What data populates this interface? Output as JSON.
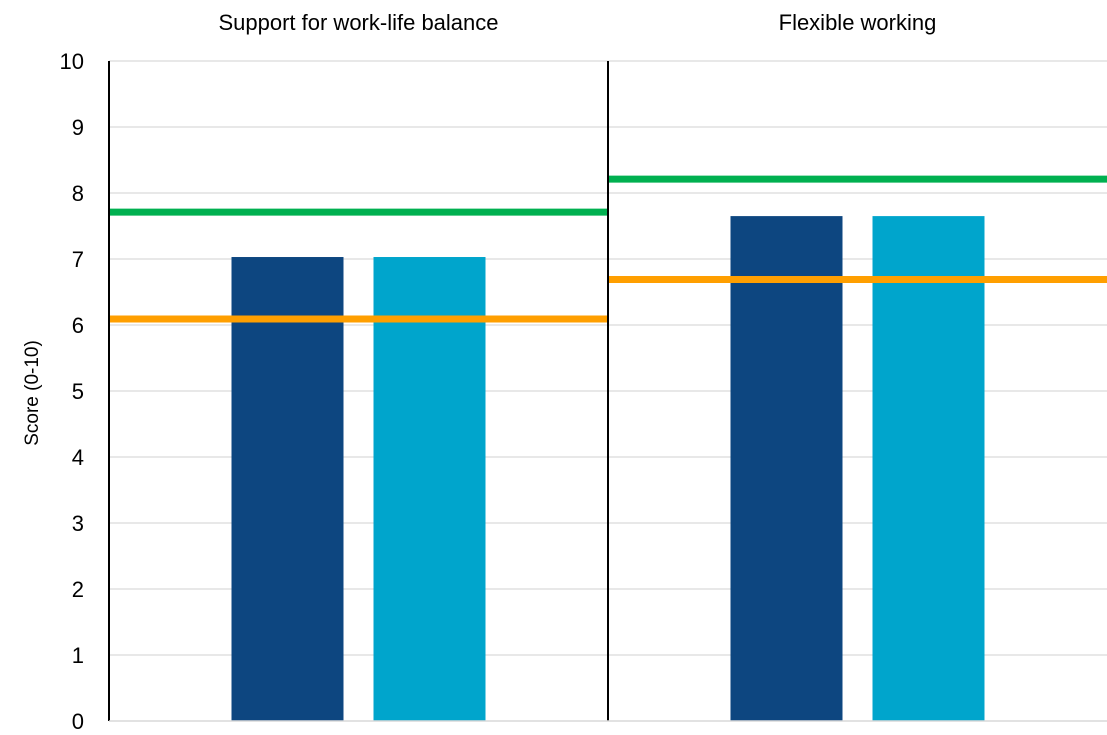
{
  "chart_data": {
    "type": "bar",
    "ylabel": "Score (0-10)",
    "ylim": [
      0,
      10
    ],
    "yticks": [
      0,
      1,
      2,
      3,
      4,
      5,
      6,
      7,
      8,
      9,
      10
    ],
    "grid": true,
    "panels": [
      {
        "title": "Support for work-life balance",
        "bars": [
          7.03,
          7.03
        ],
        "reference_lines": {
          "green": 7.71,
          "orange": 6.09
        }
      },
      {
        "title": "Flexible working",
        "bars": [
          7.65,
          7.65
        ],
        "reference_lines": {
          "green": 8.21,
          "orange": 6.69
        }
      }
    ],
    "colors": {
      "bar_1": "#0d4680",
      "bar_2": "#00a5cc",
      "green_line": "#00b050",
      "orange_line": "#ff9f00",
      "axis": "#000000",
      "grid": "#d9d9d9"
    }
  }
}
